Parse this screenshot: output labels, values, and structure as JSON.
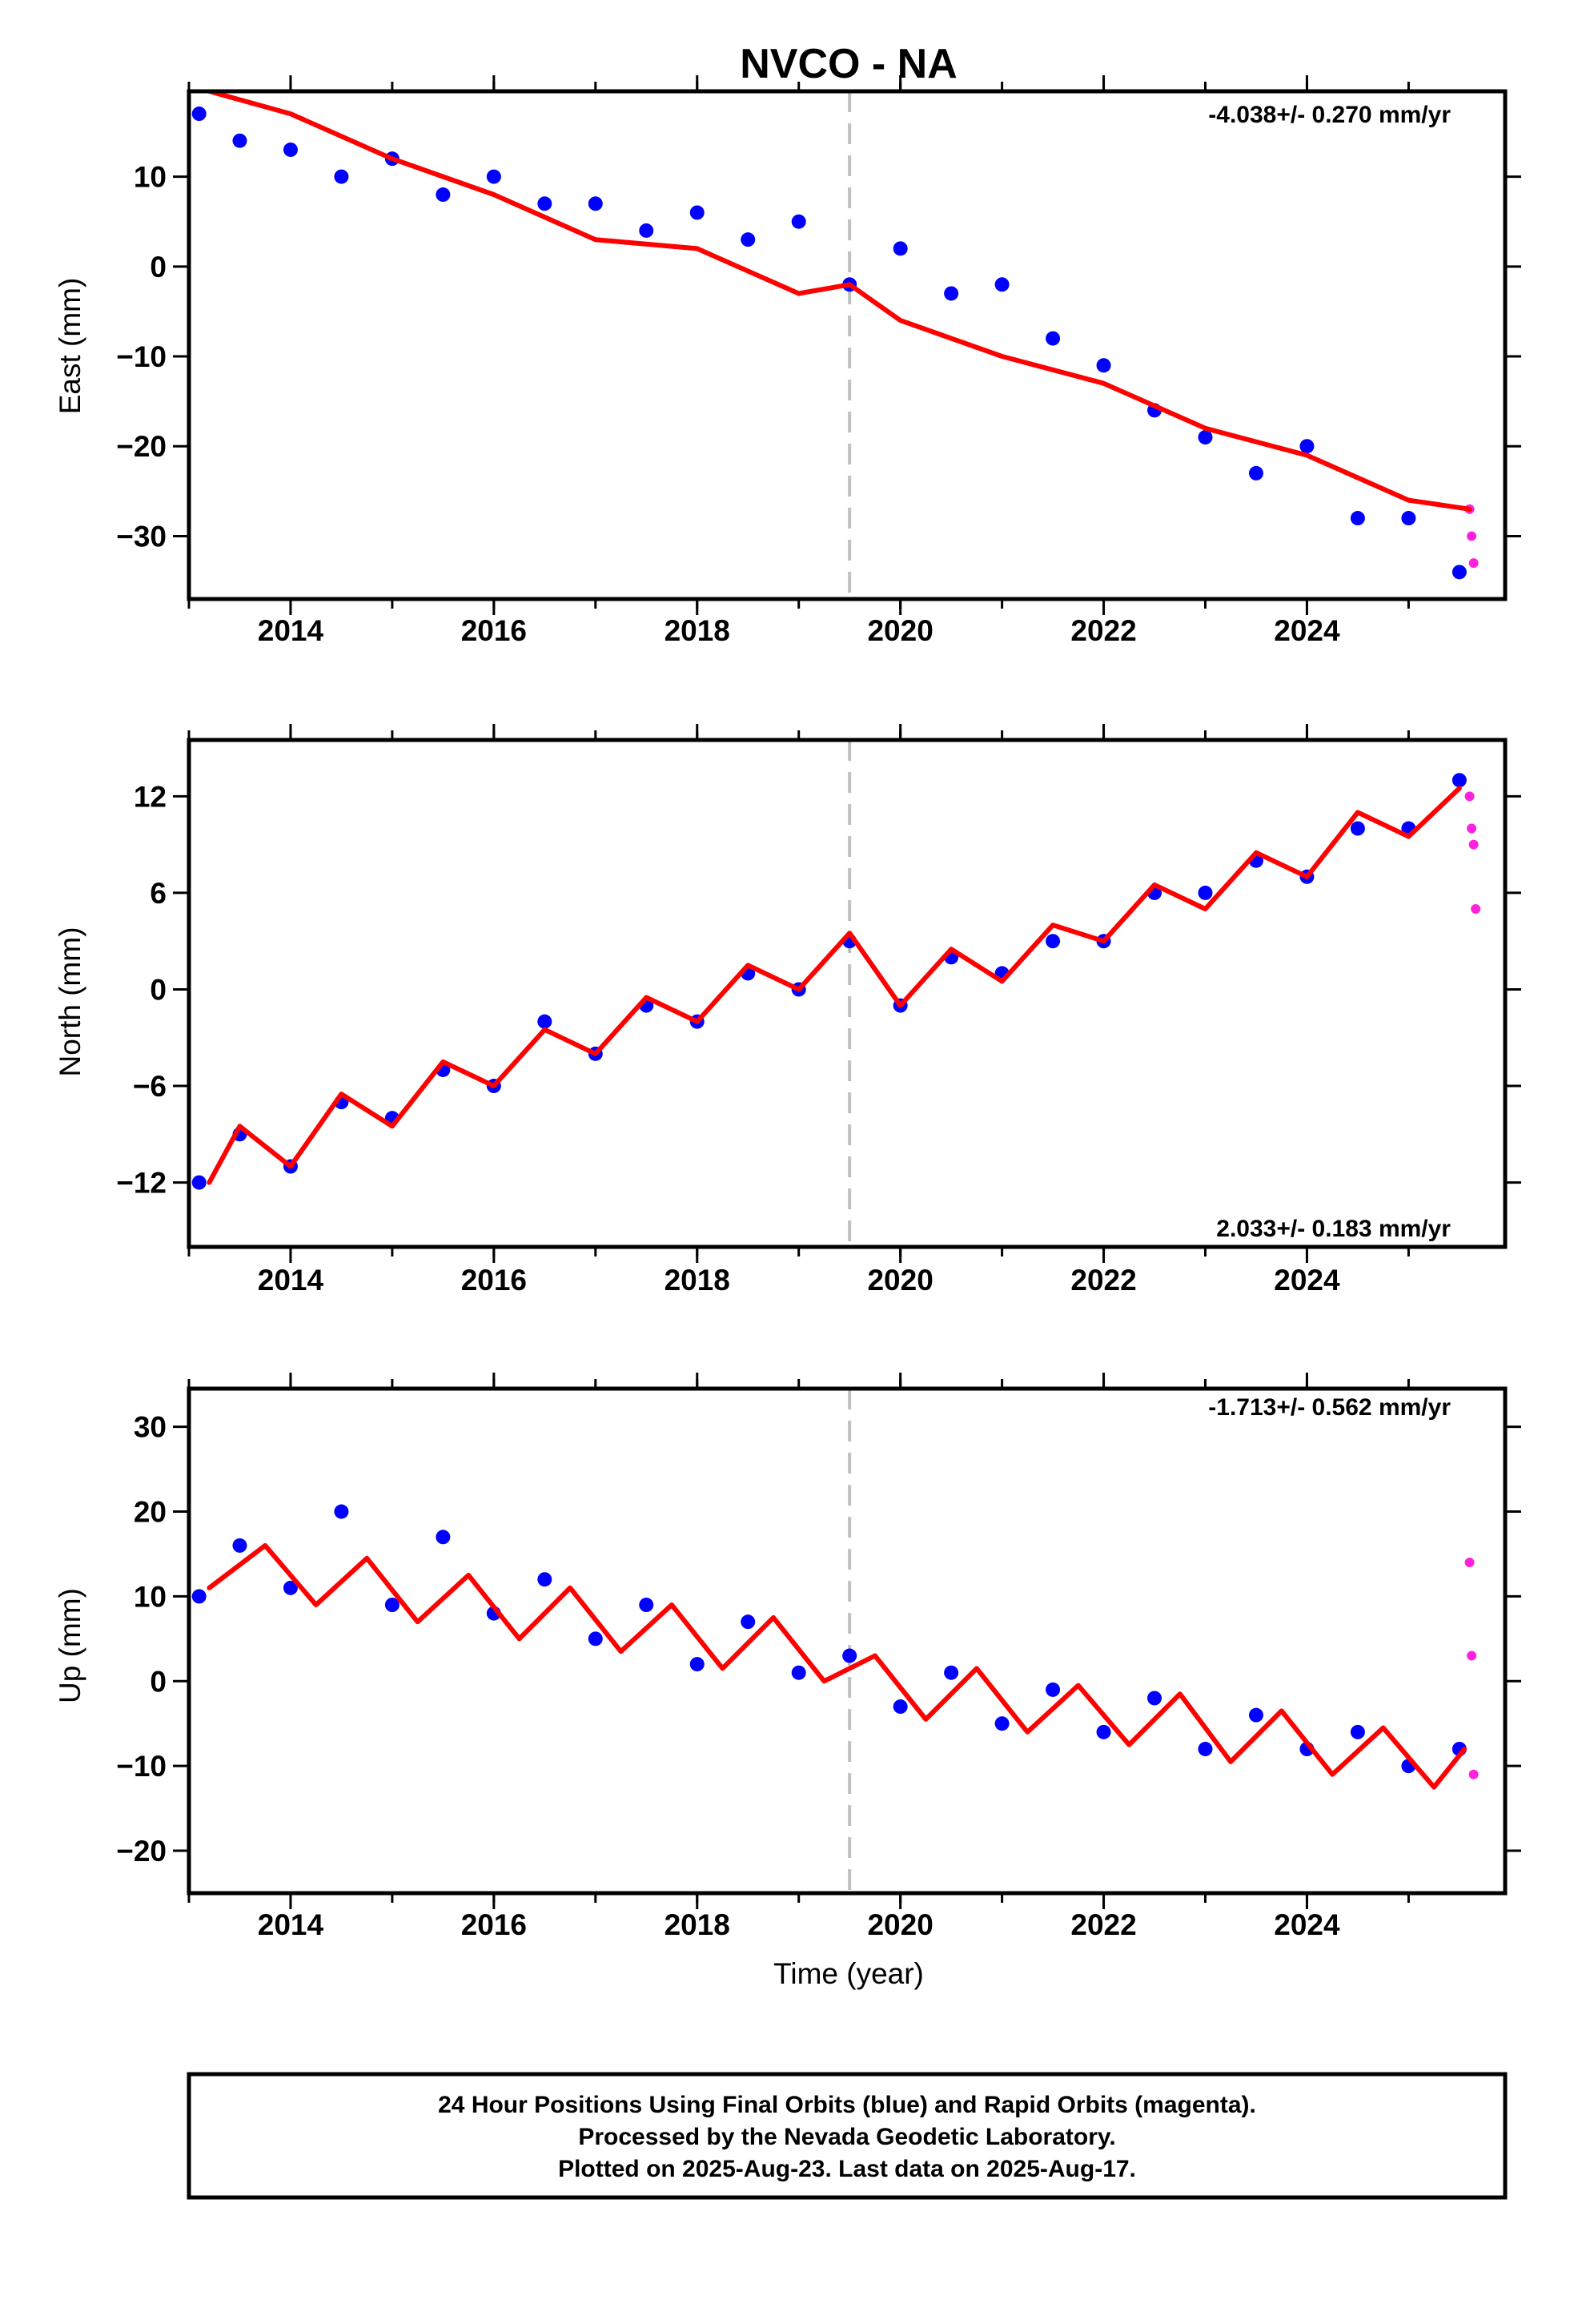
{
  "title": "NVCO - NA",
  "caption": {
    "lines": [
      "24 Hour Positions Using Final Orbits (blue) and Rapid Orbits (magenta).",
      "Processed by the Nevada Geodetic Laboratory.",
      "Plotted on 2025-Aug-23. Last data on 2025-Aug-17."
    ]
  },
  "colors": {
    "final_orbits": "#0000ff",
    "rapid_orbits": "#ff22dd",
    "model_fit": "#ff0000",
    "event_line": "#c0c0c0"
  },
  "chart_data": [
    {
      "type": "scatter",
      "ylabel": "East (mm)",
      "xlabel": "",
      "xlim": [
        2013.0,
        2025.95
      ],
      "ylim": [
        -37,
        19.5
      ],
      "xticks": [
        "2014",
        "2016",
        "2018",
        "2020",
        "2022",
        "2024"
      ],
      "yticks": [
        "10",
        "0",
        "−10",
        "−20",
        "−30"
      ],
      "rate_text": "-4.038+/- 0.270 mm/yr",
      "rate_position": "top-right",
      "event_line_x": 2019.5,
      "series": [
        {
          "name": "Final Orbits (blue)",
          "style": "points",
          "x": [
            2013.1,
            2013.5,
            2014.0,
            2014.5,
            2015.0,
            2015.5,
            2016.0,
            2016.5,
            2017.0,
            2017.5,
            2018.0,
            2018.5,
            2019.0,
            2019.5,
            2020.0,
            2020.5,
            2021.0,
            2021.5,
            2022.0,
            2022.5,
            2023.0,
            2023.5,
            2024.0,
            2024.5,
            2025.0,
            2025.5
          ],
          "y": [
            17,
            14,
            13,
            10,
            12,
            8,
            10,
            7,
            7,
            4,
            6,
            3,
            5,
            -2,
            2,
            -3,
            -2,
            -8,
            -11,
            -16,
            -19,
            -23,
            -20,
            -28,
            -28,
            -34
          ]
        },
        {
          "name": "Rapid Orbits (magenta)",
          "style": "points",
          "x": [
            2025.6,
            2025.62,
            2025.64
          ],
          "y": [
            -27,
            -30,
            -33
          ]
        },
        {
          "name": "Model fit",
          "style": "line",
          "x": [
            2013.2,
            2014.0,
            2015.0,
            2016.0,
            2017.0,
            2018.0,
            2019.0,
            2019.5,
            2020.0,
            2021.0,
            2022.0,
            2023.0,
            2024.0,
            2025.0,
            2025.6
          ],
          "y": [
            19.5,
            17,
            12,
            8,
            3,
            2,
            -3,
            -2,
            -6,
            -10,
            -13,
            -18,
            -21,
            -26,
            -27
          ]
        }
      ]
    },
    {
      "type": "scatter",
      "ylabel": "North (mm)",
      "xlabel": "",
      "xlim": [
        2013.0,
        2025.95
      ],
      "ylim": [
        -16,
        15.5
      ],
      "xticks": [
        "2014",
        "2016",
        "2018",
        "2020",
        "2022",
        "2024"
      ],
      "yticks": [
        "12",
        "6",
        "0",
        "−6",
        "−12"
      ],
      "rate_text": "2.033+/- 0.183 mm/yr",
      "rate_position": "bottom-right",
      "event_line_x": 2019.5,
      "series": [
        {
          "name": "Final Orbits (blue)",
          "style": "points",
          "x": [
            2013.1,
            2013.5,
            2014.0,
            2014.5,
            2015.0,
            2015.5,
            2016.0,
            2016.5,
            2017.0,
            2017.5,
            2018.0,
            2018.5,
            2019.0,
            2019.5,
            2020.0,
            2020.5,
            2021.0,
            2021.5,
            2022.0,
            2022.5,
            2023.0,
            2023.5,
            2024.0,
            2024.5,
            2025.0,
            2025.5
          ],
          "y": [
            -12,
            -9,
            -11,
            -7,
            -8,
            -5,
            -6,
            -2,
            -4,
            -1,
            -2,
            1,
            0,
            3,
            -1,
            2,
            1,
            3,
            3,
            6,
            6,
            8,
            7,
            10,
            10,
            13
          ]
        },
        {
          "name": "Rapid Orbits (magenta)",
          "style": "points",
          "x": [
            2025.6,
            2025.62,
            2025.64,
            2025.66
          ],
          "y": [
            12,
            10,
            9,
            5
          ]
        },
        {
          "name": "Model fit",
          "style": "line",
          "x": [
            2013.2,
            2013.5,
            2014.0,
            2014.5,
            2015.0,
            2015.5,
            2016.0,
            2016.5,
            2017.0,
            2017.5,
            2018.0,
            2018.5,
            2019.0,
            2019.5,
            2020.0,
            2020.5,
            2021.0,
            2021.5,
            2022.0,
            2022.5,
            2023.0,
            2023.5,
            2024.0,
            2024.5,
            2025.0,
            2025.5
          ],
          "y": [
            -12,
            -8.5,
            -11,
            -6.5,
            -8.5,
            -4.5,
            -6,
            -2.5,
            -4,
            -0.5,
            -2,
            1.5,
            0,
            3.5,
            -1,
            2.5,
            0.5,
            4,
            3,
            6.5,
            5,
            8.5,
            7,
            11,
            9.5,
            12.5
          ]
        }
      ]
    },
    {
      "type": "scatter",
      "ylabel": "Up (mm)",
      "xlabel": "Time (year)",
      "xlim": [
        2013.0,
        2025.95
      ],
      "ylim": [
        -25,
        34.5
      ],
      "xticks": [
        "2014",
        "2016",
        "2018",
        "2020",
        "2022",
        "2024"
      ],
      "yticks": [
        "30",
        "20",
        "10",
        "0",
        "−10",
        "−20"
      ],
      "rate_text": "-1.713+/- 0.562 mm/yr",
      "rate_position": "top-right",
      "event_line_x": 2019.5,
      "series": [
        {
          "name": "Final Orbits (blue)",
          "style": "points",
          "x": [
            2013.1,
            2013.5,
            2014.0,
            2014.5,
            2015.0,
            2015.5,
            2016.0,
            2016.5,
            2017.0,
            2017.5,
            2018.0,
            2018.5,
            2019.0,
            2019.5,
            2020.0,
            2020.5,
            2021.0,
            2021.5,
            2022.0,
            2022.5,
            2023.0,
            2023.5,
            2024.0,
            2024.5,
            2025.0,
            2025.5
          ],
          "y": [
            10,
            16,
            11,
            20,
            9,
            17,
            8,
            12,
            5,
            9,
            2,
            7,
            1,
            3,
            -3,
            1,
            -5,
            -1,
            -6,
            -2,
            -8,
            -4,
            -8,
            -6,
            -10,
            -8
          ]
        },
        {
          "name": "Rapid Orbits (magenta)",
          "style": "points",
          "x": [
            2025.6,
            2025.62,
            2025.64
          ],
          "y": [
            14,
            3,
            -11
          ]
        },
        {
          "name": "Model fit",
          "style": "line",
          "x": [
            2013.2,
            2013.75,
            2014.25,
            2014.75,
            2015.25,
            2015.75,
            2016.25,
            2016.75,
            2017.25,
            2017.75,
            2018.25,
            2018.75,
            2019.25,
            2019.75,
            2020.25,
            2020.75,
            2021.25,
            2021.75,
            2022.25,
            2022.75,
            2023.25,
            2023.75,
            2024.25,
            2024.75,
            2025.25,
            2025.55
          ],
          "y": [
            11,
            16,
            9,
            14.5,
            7,
            12.5,
            5,
            11,
            3.5,
            9,
            1.5,
            7.5,
            0,
            3,
            -4.5,
            1.5,
            -6,
            -0.5,
            -7.5,
            -1.5,
            -9.5,
            -3.5,
            -11,
            -5.5,
            -12.5,
            -8
          ]
        }
      ]
    }
  ]
}
